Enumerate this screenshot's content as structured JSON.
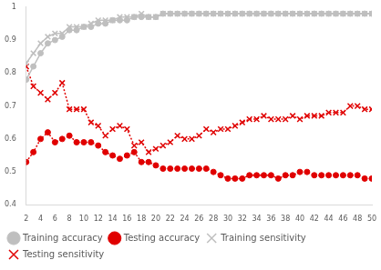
{
  "chart_data": {
    "type": "line",
    "x": [
      2,
      3,
      4,
      5,
      6,
      7,
      8,
      9,
      10,
      11,
      12,
      13,
      14,
      15,
      16,
      17,
      18,
      19,
      20,
      21,
      22,
      23,
      24,
      25,
      26,
      27,
      28,
      29,
      30,
      31,
      32,
      33,
      34,
      35,
      36,
      37,
      38,
      39,
      40,
      41,
      42,
      43,
      44,
      45,
      46,
      47,
      48,
      49,
      50
    ],
    "xlim": [
      2,
      50
    ],
    "xticks": [
      2,
      4,
      6,
      8,
      10,
      12,
      14,
      16,
      18,
      20,
      22,
      24,
      26,
      28,
      30,
      32,
      34,
      36,
      38,
      40,
      42,
      44,
      46,
      48,
      50
    ],
    "ylim": [
      0.4,
      1
    ],
    "yticks": [
      0.4,
      0.5,
      0.6,
      0.7,
      0.8,
      0.9,
      1
    ],
    "grid": false,
    "legend": "bottom",
    "series": [
      {
        "name": "Training accuracy",
        "color": "#bfbfbf",
        "marker": "circle",
        "line_style": "solid",
        "values": [
          0.78,
          0.82,
          0.86,
          0.89,
          0.9,
          0.91,
          0.93,
          0.93,
          0.94,
          0.94,
          0.95,
          0.95,
          0.96,
          0.96,
          0.96,
          0.97,
          0.97,
          0.97,
          0.97,
          0.98,
          0.98,
          0.98,
          0.98,
          0.98,
          0.98,
          0.98,
          0.98,
          0.98,
          0.98,
          0.98,
          0.98,
          0.98,
          0.98,
          0.98,
          0.98,
          0.98,
          0.98,
          0.98,
          0.98,
          0.98,
          0.98,
          0.98,
          0.98,
          0.98,
          0.98,
          0.98,
          0.98,
          0.98,
          0.98
        ]
      },
      {
        "name": "Testing accuracy",
        "color": "#e00000",
        "marker": "circle",
        "line_style": "dotted",
        "values": [
          0.53,
          0.56,
          0.6,
          0.62,
          0.59,
          0.6,
          0.61,
          0.59,
          0.59,
          0.59,
          0.58,
          0.56,
          0.55,
          0.54,
          0.55,
          0.56,
          0.53,
          0.53,
          0.52,
          0.51,
          0.51,
          0.51,
          0.51,
          0.51,
          0.51,
          0.51,
          0.5,
          0.49,
          0.48,
          0.48,
          0.48,
          0.49,
          0.49,
          0.49,
          0.49,
          0.48,
          0.49,
          0.49,
          0.5,
          0.5,
          0.49,
          0.49,
          0.49,
          0.49,
          0.49,
          0.49,
          0.49,
          0.48,
          0.48
        ]
      },
      {
        "name": "Training sensitivity",
        "color": "#bfbfbf",
        "marker": "cross",
        "line_style": "solid",
        "values": [
          0.83,
          0.86,
          0.89,
          0.91,
          0.92,
          0.92,
          0.94,
          0.94,
          0.94,
          0.95,
          0.96,
          0.96,
          0.96,
          0.97,
          0.97,
          0.97,
          0.98,
          0.97,
          0.97,
          0.98,
          0.98,
          0.98,
          0.98,
          0.98,
          0.98,
          0.98,
          0.98,
          0.98,
          0.98,
          0.98,
          0.98,
          0.98,
          0.98,
          0.98,
          0.98,
          0.98,
          0.98,
          0.98,
          0.98,
          0.98,
          0.98,
          0.98,
          0.98,
          0.98,
          0.98,
          0.98,
          0.98,
          0.98,
          0.98
        ]
      },
      {
        "name": "Testing sensitivity",
        "color": "#e00000",
        "marker": "cross",
        "line_style": "dotted",
        "values": [
          0.82,
          0.76,
          0.74,
          0.72,
          0.74,
          0.77,
          0.69,
          0.69,
          0.69,
          0.65,
          0.64,
          0.61,
          0.63,
          0.64,
          0.63,
          0.58,
          0.59,
          0.56,
          0.57,
          0.58,
          0.59,
          0.61,
          0.6,
          0.6,
          0.61,
          0.63,
          0.62,
          0.63,
          0.63,
          0.64,
          0.65,
          0.66,
          0.66,
          0.67,
          0.66,
          0.66,
          0.66,
          0.67,
          0.66,
          0.67,
          0.67,
          0.67,
          0.68,
          0.68,
          0.68,
          0.7,
          0.7,
          0.69,
          0.69
        ]
      }
    ]
  }
}
